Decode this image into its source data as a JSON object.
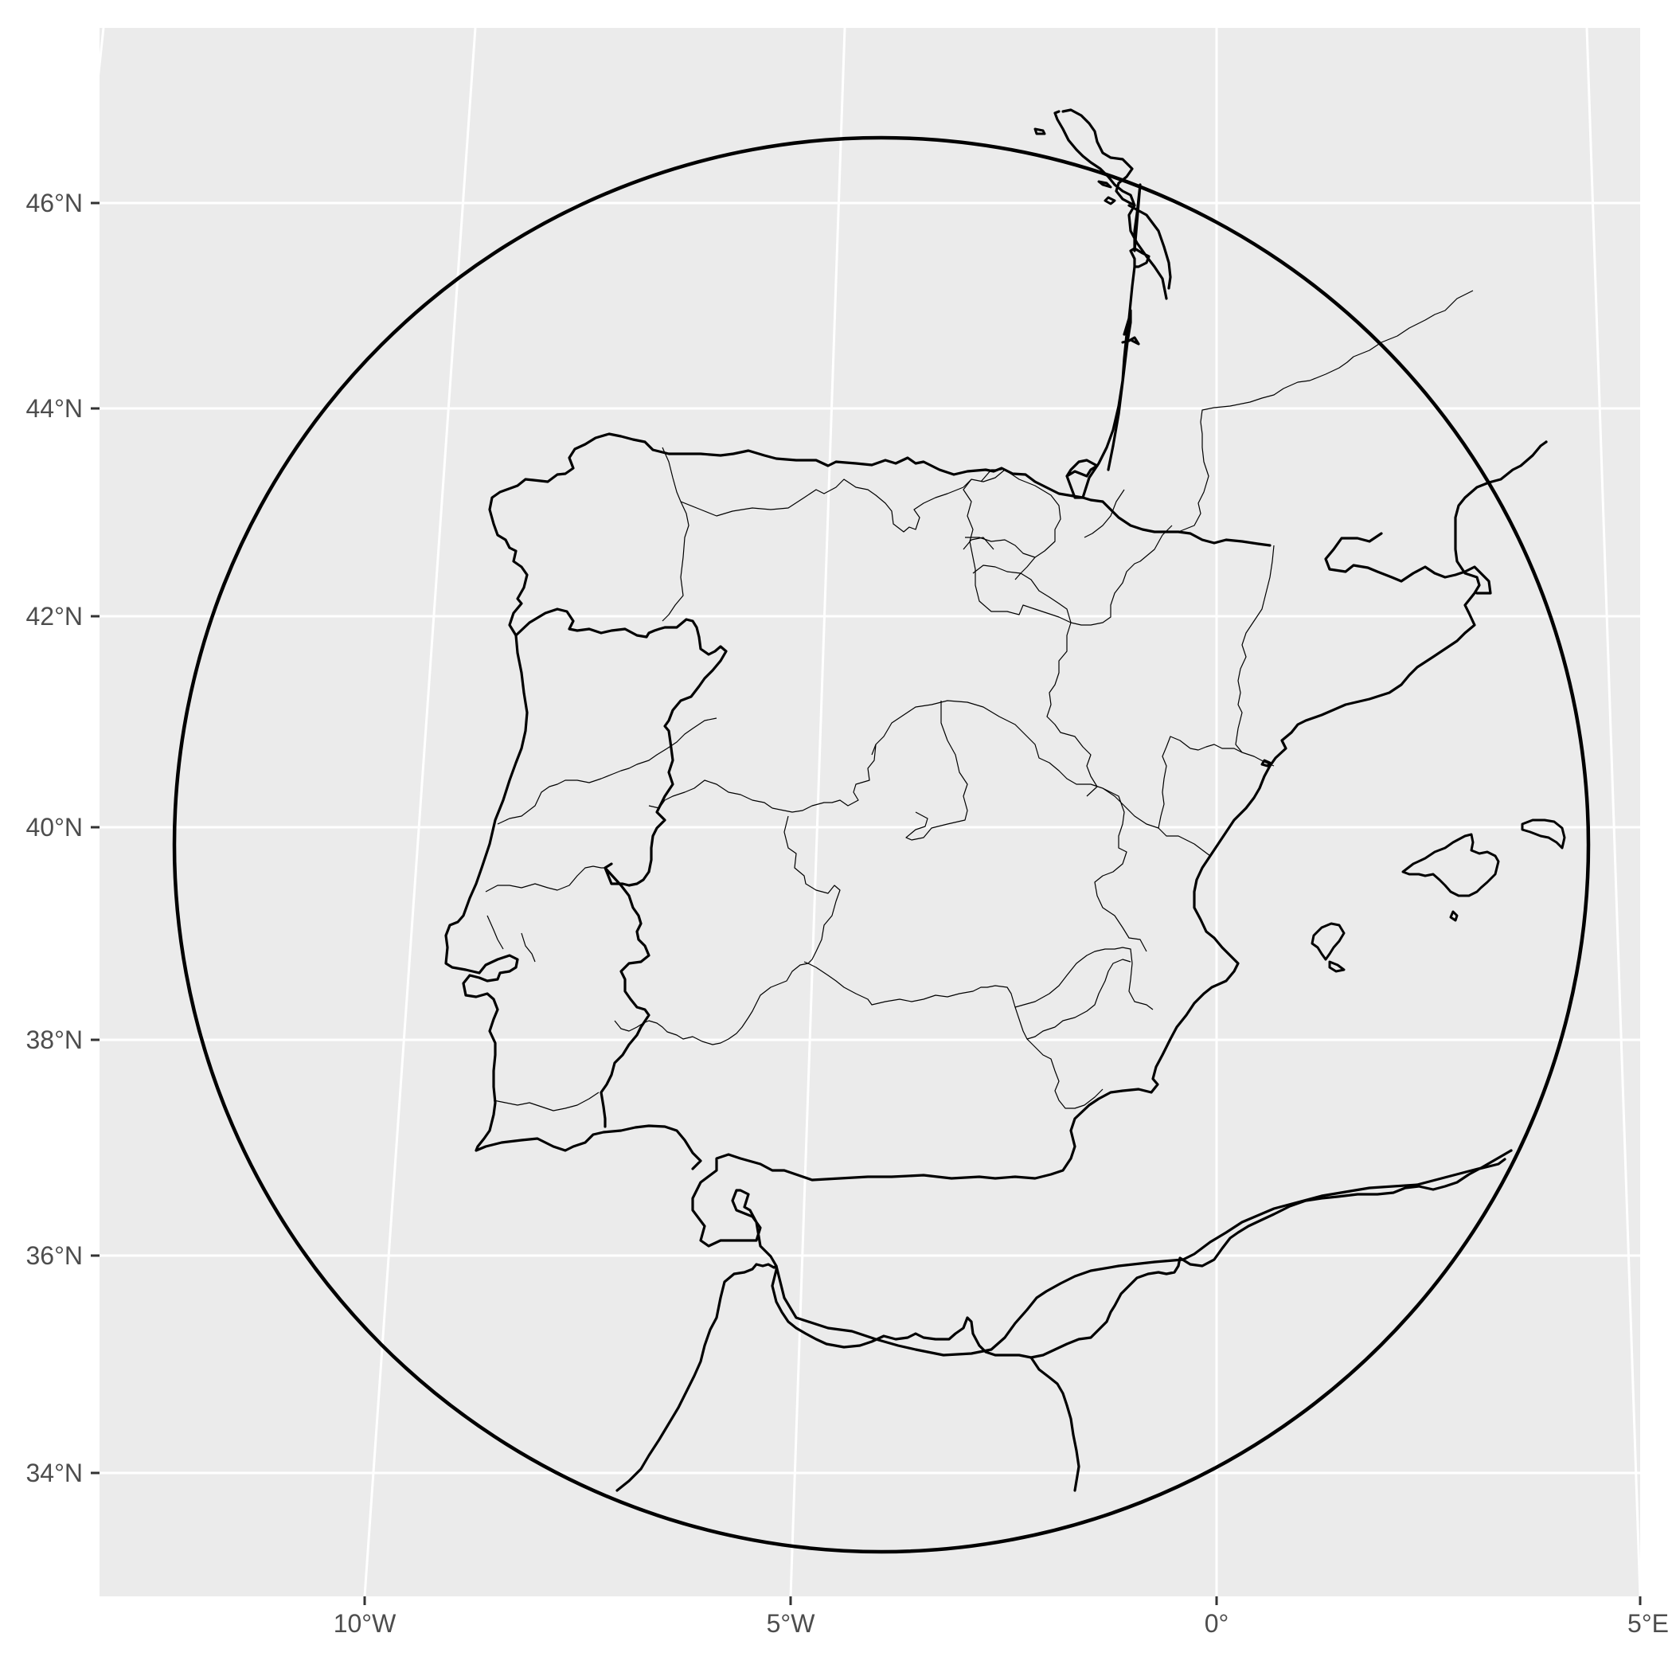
{
  "map": {
    "panel_background": "#ebebeb",
    "grid_color": "#ffffff",
    "outline_color": "#000000",
    "projection": "orthographic, circular clip",
    "latitude_ticks": [
      {
        "value": 46,
        "label": "46°N"
      },
      {
        "value": 44,
        "label": "44°N"
      },
      {
        "value": 42,
        "label": "42°N"
      },
      {
        "value": 40,
        "label": "40°N"
      },
      {
        "value": 38,
        "label": "38°N"
      },
      {
        "value": 36,
        "label": "36°N"
      },
      {
        "value": 34,
        "label": "34°N"
      }
    ],
    "longitude_ticks": [
      {
        "value": -10,
        "label": "10°W"
      },
      {
        "value": -5,
        "label": "5°W"
      },
      {
        "value": 0,
        "label": "0°"
      },
      {
        "value": 5,
        "label": "5°E"
      }
    ],
    "regions_shown": [
      "Spain",
      "Portugal",
      "southern France",
      "Morocco",
      "Algeria",
      "Balearic Islands"
    ]
  }
}
